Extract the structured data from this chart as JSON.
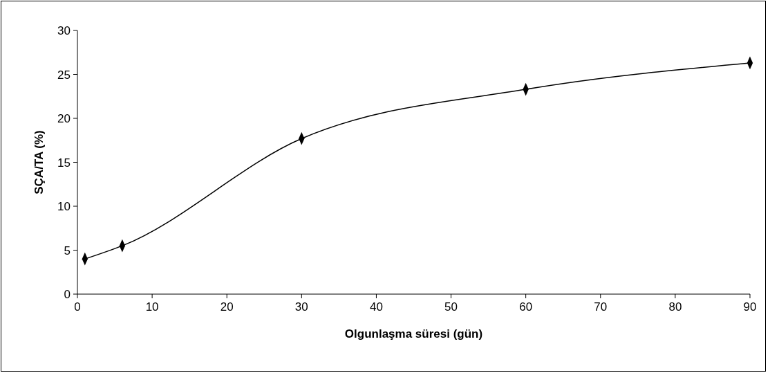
{
  "chart_data": {
    "type": "line",
    "xlabel": "Olgunlaşma süresi (gün)",
    "ylabel": "SÇA/TA (%)",
    "x": [
      1,
      6,
      30,
      60,
      90
    ],
    "series": [
      {
        "color": "#000000",
        "values": [
          4.0,
          5.5,
          17.7,
          23.3,
          26.3
        ]
      }
    ],
    "xlim": [
      0,
      90
    ],
    "xticks": [
      0,
      10,
      20,
      30,
      40,
      50,
      60,
      70,
      80,
      90
    ],
    "ylim": [
      0,
      30
    ],
    "yticks": [
      0,
      5,
      10,
      15,
      20,
      25,
      30
    ],
    "marker": "diamond",
    "line_style": "solid",
    "grid": false
  }
}
